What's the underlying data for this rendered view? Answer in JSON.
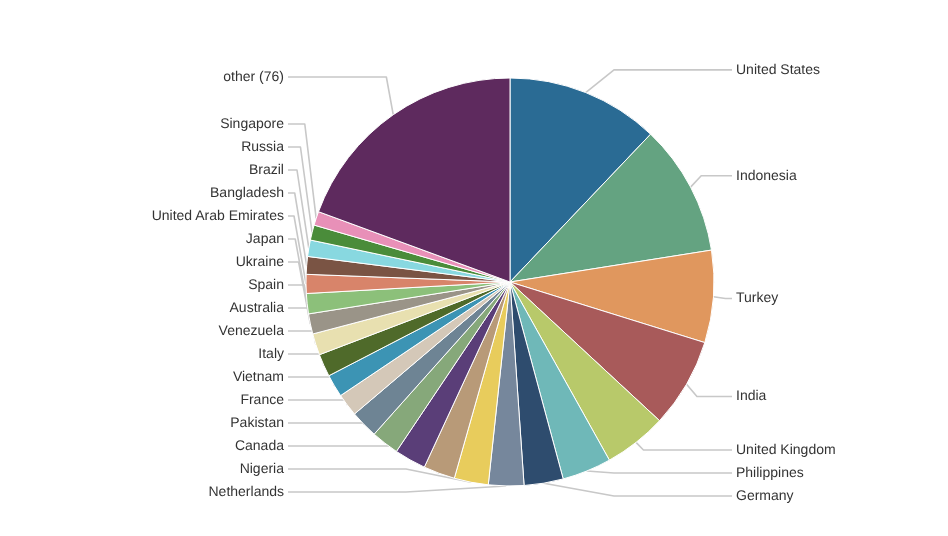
{
  "chart_data": {
    "type": "pie",
    "categories": [
      "United States",
      "Indonesia",
      "Turkey",
      "India",
      "United Kingdom",
      "Philippines",
      "Germany",
      "Netherlands",
      "Nigeria",
      "Canada",
      "Pakistan",
      "France",
      "Vietnam",
      "Italy",
      "Venezuela",
      "Australia",
      "Spain",
      "Ukraine",
      "Japan",
      "United Arab Emirates",
      "Bangladesh",
      "Brazil",
      "Russia",
      "Singapore",
      "other (76)"
    ],
    "values": [
      12.1,
      10.4,
      7.3,
      7.1,
      5.0,
      3.9,
      3.1,
      2.8,
      2.7,
      2.5,
      2.5,
      2.2,
      2.2,
      1.8,
      1.8,
      1.8,
      1.7,
      1.6,
      1.6,
      1.5,
      1.4,
      1.3,
      1.2,
      1.1,
      19.4
    ],
    "colors": [
      "#2a6b94",
      "#64a381",
      "#e0975e",
      "#a85a5a",
      "#b8c96a",
      "#6fb8b8",
      "#2e4c6e",
      "#76879c",
      "#e8cc5c",
      "#b89a78",
      "#5a3e78",
      "#86a87a",
      "#6e8494",
      "#d4c8b8",
      "#3c94b4",
      "#4f6a2a",
      "#e8e0b0",
      "#9a9488",
      "#8cc07a",
      "#d8846a",
      "#7a5444",
      "#88d8e0",
      "#4a8c3a",
      "#e890b8",
      "#5e2a5e"
    ]
  }
}
